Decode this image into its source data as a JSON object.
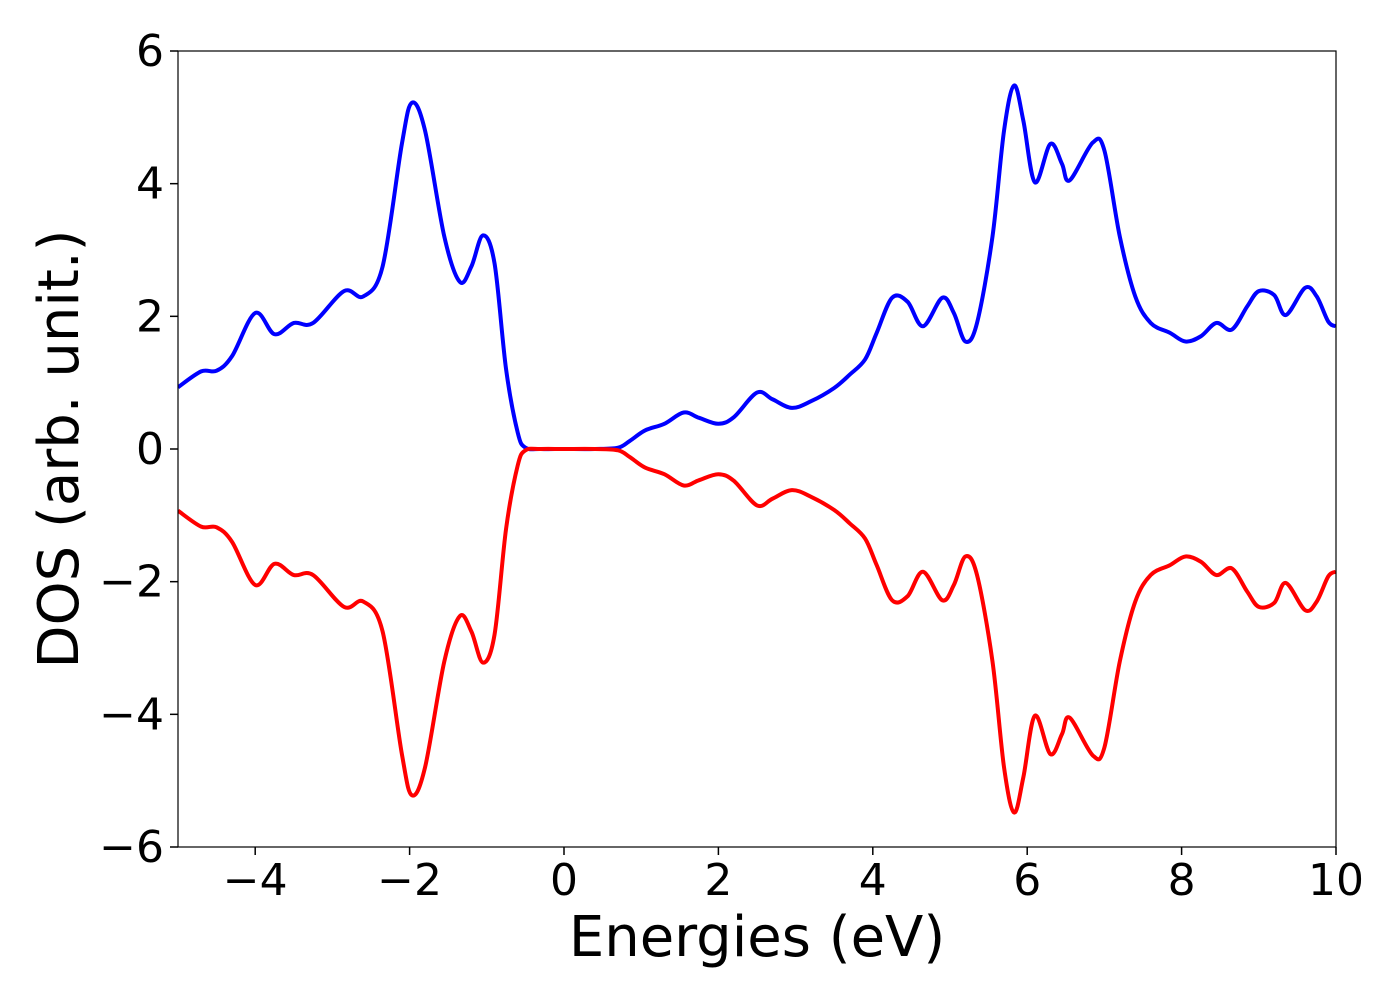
{
  "chart_data": {
    "type": "line",
    "title": "",
    "xlabel": "Energies (eV)",
    "ylabel": "DOS (arb. unit.)",
    "xlim": [
      -5,
      10
    ],
    "ylim": [
      -6,
      6
    ],
    "grid": false,
    "legend": "none",
    "x_ticks": [
      {
        "value": -4,
        "label": "−4"
      },
      {
        "value": -2,
        "label": "−2"
      },
      {
        "value": 0,
        "label": "0"
      },
      {
        "value": 2,
        "label": "2"
      },
      {
        "value": 4,
        "label": "4"
      },
      {
        "value": 6,
        "label": "6"
      },
      {
        "value": 8,
        "label": "8"
      },
      {
        "value": 10,
        "label": "10"
      }
    ],
    "y_ticks": [
      {
        "value": -6,
        "label": "−6"
      },
      {
        "value": -4,
        "label": "−4"
      },
      {
        "value": -2,
        "label": "−2"
      },
      {
        "value": 0,
        "label": "0"
      },
      {
        "value": 2,
        "label": "2"
      },
      {
        "value": 4,
        "label": "4"
      },
      {
        "value": 6,
        "label": "6"
      }
    ],
    "series": [
      {
        "color": "#0000ff",
        "points": [
          [
            -5.0,
            0.93
          ],
          [
            -4.7,
            1.17
          ],
          [
            -4.5,
            1.18
          ],
          [
            -4.3,
            1.4
          ],
          [
            -4.0,
            2.05
          ],
          [
            -3.75,
            1.73
          ],
          [
            -3.5,
            1.9
          ],
          [
            -3.25,
            1.9
          ],
          [
            -2.85,
            2.38
          ],
          [
            -2.6,
            2.3
          ],
          [
            -2.35,
            2.75
          ],
          [
            -2.1,
            4.6
          ],
          [
            -1.97,
            5.22
          ],
          [
            -1.8,
            4.8
          ],
          [
            -1.55,
            3.2
          ],
          [
            -1.35,
            2.52
          ],
          [
            -1.2,
            2.75
          ],
          [
            -1.05,
            3.22
          ],
          [
            -0.9,
            2.8
          ],
          [
            -0.75,
            1.2
          ],
          [
            -0.6,
            0.25
          ],
          [
            -0.5,
            0.02
          ],
          [
            -0.3,
            0.0
          ],
          [
            0.0,
            0.0
          ],
          [
            0.4,
            0.0
          ],
          [
            0.7,
            0.02
          ],
          [
            0.85,
            0.12
          ],
          [
            1.05,
            0.28
          ],
          [
            1.3,
            0.38
          ],
          [
            1.55,
            0.55
          ],
          [
            1.75,
            0.47
          ],
          [
            2.0,
            0.38
          ],
          [
            2.2,
            0.48
          ],
          [
            2.5,
            0.85
          ],
          [
            2.7,
            0.75
          ],
          [
            2.95,
            0.62
          ],
          [
            3.2,
            0.72
          ],
          [
            3.5,
            0.92
          ],
          [
            3.7,
            1.12
          ],
          [
            3.9,
            1.35
          ],
          [
            4.05,
            1.75
          ],
          [
            4.25,
            2.28
          ],
          [
            4.45,
            2.22
          ],
          [
            4.65,
            1.85
          ],
          [
            4.9,
            2.28
          ],
          [
            5.05,
            2.05
          ],
          [
            5.2,
            1.62
          ],
          [
            5.35,
            1.9
          ],
          [
            5.55,
            3.2
          ],
          [
            5.7,
            4.8
          ],
          [
            5.83,
            5.48
          ],
          [
            5.95,
            4.95
          ],
          [
            6.1,
            4.02
          ],
          [
            6.3,
            4.6
          ],
          [
            6.45,
            4.3
          ],
          [
            6.55,
            4.05
          ],
          [
            6.85,
            4.62
          ],
          [
            7.0,
            4.5
          ],
          [
            7.2,
            3.2
          ],
          [
            7.4,
            2.3
          ],
          [
            7.6,
            1.9
          ],
          [
            7.85,
            1.75
          ],
          [
            8.05,
            1.62
          ],
          [
            8.25,
            1.7
          ],
          [
            8.45,
            1.9
          ],
          [
            8.65,
            1.8
          ],
          [
            8.85,
            2.15
          ],
          [
            9.0,
            2.38
          ],
          [
            9.2,
            2.32
          ],
          [
            9.35,
            2.02
          ],
          [
            9.6,
            2.43
          ],
          [
            9.75,
            2.3
          ],
          [
            9.9,
            1.92
          ],
          [
            10.0,
            1.85
          ]
        ]
      },
      {
        "color": "#ff0000",
        "points": [
          [
            -5.0,
            -0.93
          ],
          [
            -4.7,
            -1.17
          ],
          [
            -4.5,
            -1.18
          ],
          [
            -4.3,
            -1.4
          ],
          [
            -4.0,
            -2.05
          ],
          [
            -3.75,
            -1.73
          ],
          [
            -3.5,
            -1.9
          ],
          [
            -3.25,
            -1.9
          ],
          [
            -2.85,
            -2.38
          ],
          [
            -2.6,
            -2.3
          ],
          [
            -2.35,
            -2.75
          ],
          [
            -2.1,
            -4.6
          ],
          [
            -1.97,
            -5.22
          ],
          [
            -1.8,
            -4.8
          ],
          [
            -1.55,
            -3.2
          ],
          [
            -1.35,
            -2.52
          ],
          [
            -1.2,
            -2.75
          ],
          [
            -1.05,
            -3.22
          ],
          [
            -0.9,
            -2.8
          ],
          [
            -0.75,
            -1.2
          ],
          [
            -0.6,
            -0.25
          ],
          [
            -0.5,
            -0.02
          ],
          [
            -0.3,
            0.0
          ],
          [
            0.0,
            0.0
          ],
          [
            0.4,
            0.0
          ],
          [
            0.7,
            -0.02
          ],
          [
            0.85,
            -0.12
          ],
          [
            1.05,
            -0.28
          ],
          [
            1.3,
            -0.38
          ],
          [
            1.55,
            -0.55
          ],
          [
            1.75,
            -0.47
          ],
          [
            2.0,
            -0.38
          ],
          [
            2.2,
            -0.48
          ],
          [
            2.5,
            -0.85
          ],
          [
            2.7,
            -0.75
          ],
          [
            2.95,
            -0.62
          ],
          [
            3.2,
            -0.72
          ],
          [
            3.5,
            -0.92
          ],
          [
            3.7,
            -1.12
          ],
          [
            3.9,
            -1.35
          ],
          [
            4.05,
            -1.75
          ],
          [
            4.25,
            -2.28
          ],
          [
            4.45,
            -2.22
          ],
          [
            4.65,
            -1.85
          ],
          [
            4.9,
            -2.28
          ],
          [
            5.05,
            -2.05
          ],
          [
            5.2,
            -1.62
          ],
          [
            5.35,
            -1.9
          ],
          [
            5.55,
            -3.2
          ],
          [
            5.7,
            -4.8
          ],
          [
            5.83,
            -5.48
          ],
          [
            5.95,
            -4.95
          ],
          [
            6.1,
            -4.02
          ],
          [
            6.3,
            -4.6
          ],
          [
            6.45,
            -4.3
          ],
          [
            6.55,
            -4.05
          ],
          [
            6.85,
            -4.62
          ],
          [
            7.0,
            -4.5
          ],
          [
            7.2,
            -3.2
          ],
          [
            7.4,
            -2.3
          ],
          [
            7.6,
            -1.9
          ],
          [
            7.85,
            -1.75
          ],
          [
            8.05,
            -1.62
          ],
          [
            8.25,
            -1.7
          ],
          [
            8.45,
            -1.9
          ],
          [
            8.65,
            -1.8
          ],
          [
            8.85,
            -2.15
          ],
          [
            9.0,
            -2.38
          ],
          [
            9.2,
            -2.32
          ],
          [
            9.35,
            -2.02
          ],
          [
            9.6,
            -2.43
          ],
          [
            9.75,
            -2.3
          ],
          [
            9.9,
            -1.92
          ],
          [
            10.0,
            -1.85
          ]
        ]
      }
    ]
  }
}
